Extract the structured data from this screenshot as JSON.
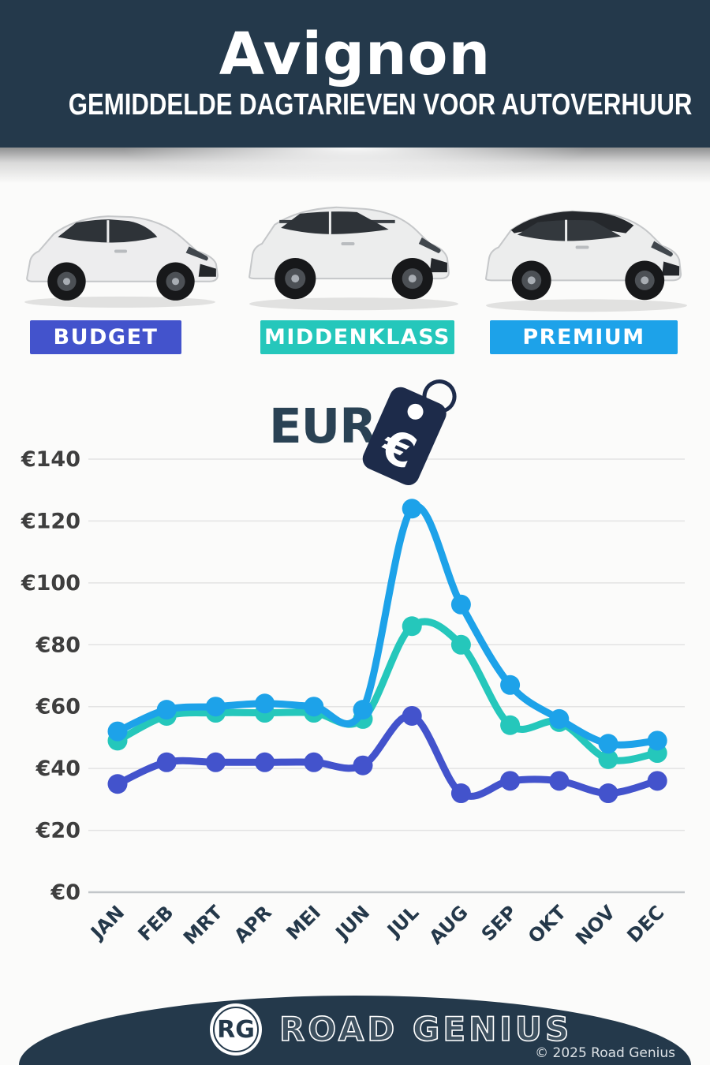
{
  "theme": {
    "navy": "#24394b",
    "background": "#fbfbfa",
    "grid_color": "#e3e3e3",
    "axis_color": "#c2c6c9"
  },
  "header": {
    "title": "Avignon",
    "subtitle": "GEMIDDELDE DAGTARIEVEN VOOR AUTOVERHUUR"
  },
  "categories": [
    {
      "label": "BUDGET",
      "color": "#4353cc",
      "car_icon": "white-hatchback-car"
    },
    {
      "label": "MIDDENKLASS",
      "color": "#25c7bb",
      "car_icon": "white-suv-car"
    },
    {
      "label": "PREMIUM",
      "color": "#1da2e9",
      "car_icon": "white-luxury-suv-dark-roof-car"
    }
  ],
  "currency": {
    "label": "EUR",
    "tag_icon": "euro-price-tag-icon",
    "tag_color": "#1d2b4a"
  },
  "chart_data": {
    "type": "line",
    "categories": [
      "JAN",
      "FEB",
      "MRT",
      "APR",
      "MEI",
      "JUN",
      "JUL",
      "AUG",
      "SEP",
      "OKT",
      "NOV",
      "DEC"
    ],
    "series": [
      {
        "name": "Budget",
        "color": "#4353cc",
        "values": [
          35,
          42,
          42,
          42,
          42,
          41,
          57,
          32,
          36,
          36,
          32,
          36
        ]
      },
      {
        "name": "Middenklass",
        "color": "#25c7bb",
        "values": [
          49,
          57,
          58,
          58,
          58,
          56,
          86,
          80,
          54,
          55,
          43,
          45
        ]
      },
      {
        "name": "Premium",
        "color": "#1da2e9",
        "values": [
          52,
          59,
          60,
          61,
          60,
          59,
          124,
          93,
          67,
          56,
          48,
          49
        ]
      }
    ],
    "currency_prefix": "€",
    "yticks": [
      0,
      20,
      40,
      60,
      80,
      100,
      120,
      140
    ],
    "ylim": [
      0,
      140
    ],
    "grid": true,
    "legend_position": "none",
    "marker": "circle"
  },
  "footer": {
    "logo_initials": "RG",
    "brand": "ROAD GENIUS",
    "copyright": "© 2025 Road Genius"
  }
}
